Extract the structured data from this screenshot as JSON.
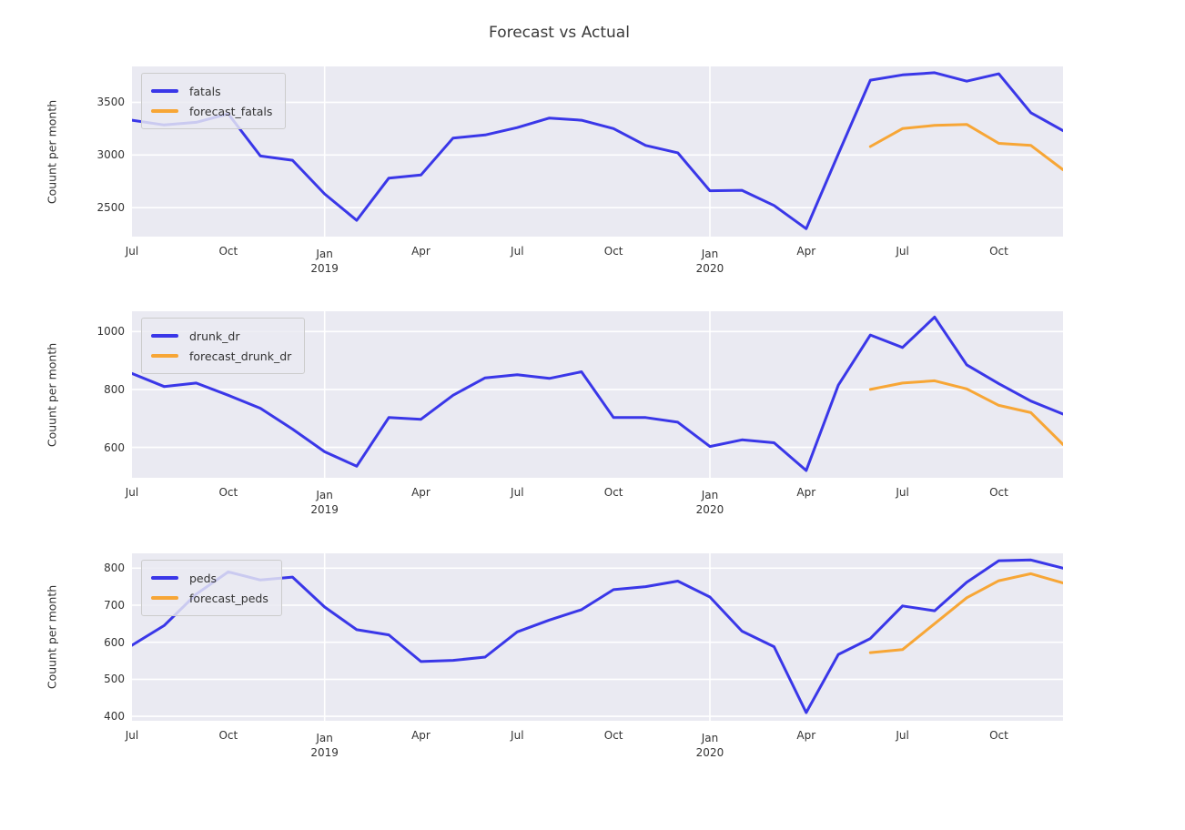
{
  "title": "Forecast vs Actual",
  "colors": {
    "actual": "#3a37e8",
    "forecast": "#f7a636",
    "plot_bg": "#eaeaf2",
    "grid": "#ffffff",
    "text": "#333333"
  },
  "x_axis": {
    "ticks": [
      {
        "index": 0,
        "label": "Jul"
      },
      {
        "index": 3,
        "label": "Oct"
      },
      {
        "index": 6,
        "label": "Jan",
        "year": "2019"
      },
      {
        "index": 9,
        "label": "Apr"
      },
      {
        "index": 12,
        "label": "Jul"
      },
      {
        "index": 15,
        "label": "Oct"
      },
      {
        "index": 18,
        "label": "Jan",
        "year": "2020"
      },
      {
        "index": 21,
        "label": "Apr"
      },
      {
        "index": 24,
        "label": "Jul"
      },
      {
        "index": 27,
        "label": "Oct"
      }
    ],
    "major_gridline_indices": [
      6,
      18
    ]
  },
  "chart_data": [
    {
      "type": "line",
      "ylabel": "Couunt per month",
      "yticks": [
        2500,
        3000,
        3500
      ],
      "ylim": [
        2225,
        3840
      ],
      "grid": true,
      "legend_position": "upper left",
      "categories": [
        "Jul 2018",
        "Aug 2018",
        "Sep 2018",
        "Oct 2018",
        "Nov 2018",
        "Dec 2018",
        "Jan 2019",
        "Feb 2019",
        "Mar 2019",
        "Apr 2019",
        "May 2019",
        "Jun 2019",
        "Jul 2019",
        "Aug 2019",
        "Sep 2019",
        "Oct 2019",
        "Nov 2019",
        "Dec 2019",
        "Jan 2020",
        "Feb 2020",
        "Mar 2020",
        "Apr 2020",
        "May 2020",
        "Jun 2020",
        "Jul 2020",
        "Aug 2020",
        "Sep 2020",
        "Oct 2020",
        "Nov 2020",
        "Dec 2020"
      ],
      "series": [
        {
          "name": "fatals",
          "color": "#3a37e8",
          "values": [
            3330,
            3285,
            3310,
            3390,
            2990,
            2950,
            2630,
            2380,
            2780,
            2810,
            3160,
            3190,
            3260,
            3350,
            3330,
            3250,
            3090,
            3020,
            2660,
            2665,
            2520,
            2300,
            3010,
            3710,
            3760,
            3780,
            3700,
            3770,
            3400,
            3230
          ]
        },
        {
          "name": "forecast_fatals",
          "color": "#f7a636",
          "values": [
            null,
            null,
            null,
            null,
            null,
            null,
            null,
            null,
            null,
            null,
            null,
            null,
            null,
            null,
            null,
            null,
            null,
            null,
            null,
            null,
            null,
            null,
            null,
            3080,
            3250,
            3280,
            3290,
            3110,
            3090,
            2860
          ]
        }
      ]
    },
    {
      "type": "line",
      "ylabel": "Couunt per month",
      "yticks": [
        600,
        800,
        1000
      ],
      "ylim": [
        495,
        1070
      ],
      "grid": true,
      "legend_position": "upper left",
      "categories": [
        "Jul 2018",
        "Aug 2018",
        "Sep 2018",
        "Oct 2018",
        "Nov 2018",
        "Dec 2018",
        "Jan 2019",
        "Feb 2019",
        "Mar 2019",
        "Apr 2019",
        "May 2019",
        "Jun 2019",
        "Jul 2019",
        "Aug 2019",
        "Sep 2019",
        "Oct 2019",
        "Nov 2019",
        "Dec 2019",
        "Jan 2020",
        "Feb 2020",
        "Mar 2020",
        "Apr 2020",
        "May 2020",
        "Jun 2020",
        "Jul 2020",
        "Aug 2020",
        "Sep 2020",
        "Oct 2020",
        "Nov 2020",
        "Dec 2020"
      ],
      "series": [
        {
          "name": "drunk_dr",
          "color": "#3a37e8",
          "values": [
            855,
            810,
            822,
            780,
            735,
            663,
            585,
            535,
            703,
            697,
            780,
            840,
            851,
            838,
            861,
            703,
            703,
            687,
            603,
            626,
            616,
            520,
            815,
            988,
            945,
            1050,
            885,
            820,
            760,
            715
          ]
        },
        {
          "name": "forecast_drunk_dr",
          "color": "#f7a636",
          "values": [
            null,
            null,
            null,
            null,
            null,
            null,
            null,
            null,
            null,
            null,
            null,
            null,
            null,
            null,
            null,
            null,
            null,
            null,
            null,
            null,
            null,
            null,
            null,
            800,
            822,
            830,
            802,
            745,
            720,
            610
          ]
        }
      ]
    },
    {
      "type": "line",
      "ylabel": "Couunt per month",
      "yticks": [
        400,
        500,
        600,
        700,
        800
      ],
      "ylim": [
        388,
        840
      ],
      "grid": true,
      "legend_position": "upper left",
      "categories": [
        "Jul 2018",
        "Aug 2018",
        "Sep 2018",
        "Oct 2018",
        "Nov 2018",
        "Dec 2018",
        "Jan 2019",
        "Feb 2019",
        "Mar 2019",
        "Apr 2019",
        "May 2019",
        "Jun 2019",
        "Jul 2019",
        "Aug 2019",
        "Sep 2019",
        "Oct 2019",
        "Nov 2019",
        "Dec 2019",
        "Jan 2020",
        "Feb 2020",
        "Mar 2020",
        "Apr 2020",
        "May 2020",
        "Jun 2020",
        "Jul 2020",
        "Aug 2020",
        "Sep 2020",
        "Oct 2020",
        "Nov 2020",
        "Dec 2020"
      ],
      "series": [
        {
          "name": "peds",
          "color": "#3a37e8",
          "values": [
            592,
            645,
            730,
            790,
            768,
            776,
            695,
            634,
            620,
            548,
            551,
            560,
            628,
            660,
            688,
            742,
            750,
            765,
            722,
            630,
            588,
            410,
            567,
            610,
            698,
            685,
            762,
            820,
            822,
            800
          ]
        },
        {
          "name": "forecast_peds",
          "color": "#f7a636",
          "values": [
            null,
            null,
            null,
            null,
            null,
            null,
            null,
            null,
            null,
            null,
            null,
            null,
            null,
            null,
            null,
            null,
            null,
            null,
            null,
            null,
            null,
            null,
            null,
            572,
            580,
            650,
            720,
            766,
            785,
            760
          ]
        }
      ]
    }
  ]
}
